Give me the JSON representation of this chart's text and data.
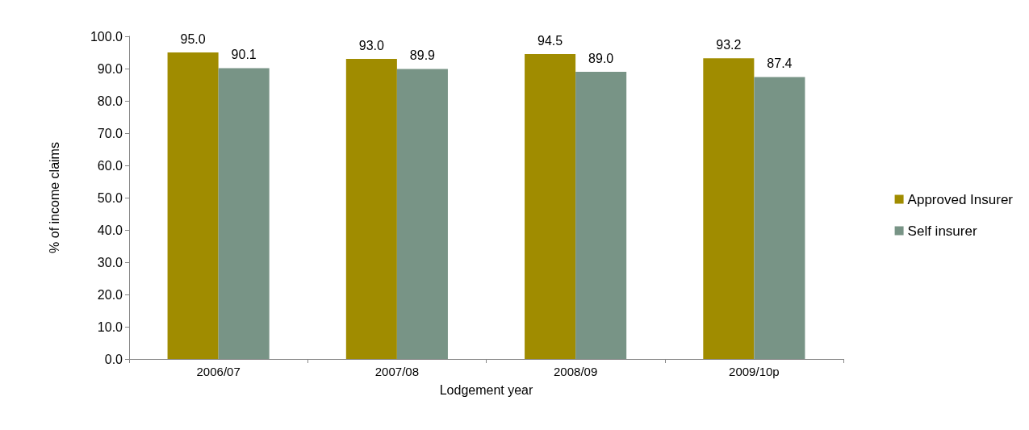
{
  "chart_data": {
    "type": "bar",
    "xlabel": "Lodgement year",
    "ylabel": "% of income claims",
    "categories": [
      "2006/07",
      "2007/08",
      "2008/09",
      "2009/10p"
    ],
    "series": [
      {
        "name": "Approved Insurer",
        "color": "#a08c00",
        "values": [
          95.0,
          93.0,
          94.5,
          93.2
        ],
        "value_labels": [
          "95.0",
          "93.0",
          "94.5",
          "93.2"
        ]
      },
      {
        "name": "Self insurer",
        "color": "#789486",
        "values": [
          90.1,
          89.9,
          89.0,
          87.4
        ],
        "value_labels": [
          "90.1",
          "89.9",
          "89.0",
          "87.4"
        ]
      }
    ],
    "ylim": [
      0,
      100
    ],
    "yticks": [
      {
        "value": 0,
        "label": "0.0"
      },
      {
        "value": 10,
        "label": "10.0"
      },
      {
        "value": 20,
        "label": "20.0"
      },
      {
        "value": 30,
        "label": "30.0"
      },
      {
        "value": 40,
        "label": "40.0"
      },
      {
        "value": 50,
        "label": "50.0"
      },
      {
        "value": 60,
        "label": "60.0"
      },
      {
        "value": 70,
        "label": "70.0"
      },
      {
        "value": 80,
        "label": "80.0"
      },
      {
        "value": 90,
        "label": "90.0"
      },
      {
        "value": 100,
        "label": "100.0"
      }
    ],
    "legend": "right",
    "grid": false
  }
}
